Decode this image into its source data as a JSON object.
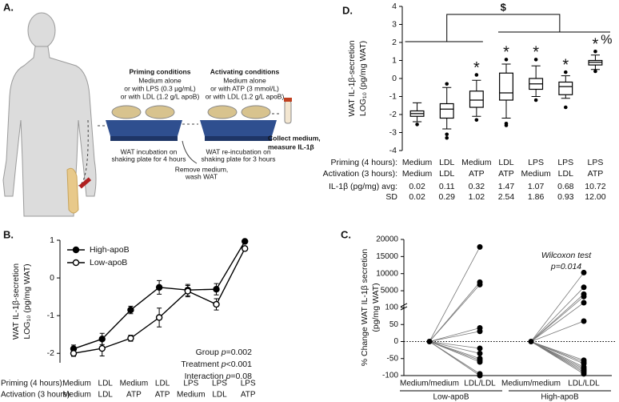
{
  "diagram": {
    "panel": "A.",
    "priming": {
      "title": "Priming conditions",
      "lines": [
        "Medium alone",
        "or with LPS (0.3 µg/mL)",
        "or with LDL (1.2 g/L apoB)"
      ]
    },
    "activating": {
      "title": "Activating conditions",
      "lines": [
        "Medium alone",
        "or with ATP (3 mmol/L)",
        "or with LDL (1.2 g/L apoB)"
      ]
    },
    "collect": [
      "Collect medium,",
      "measure IL-1β"
    ],
    "step1": [
      "WAT incubation on",
      "shaking plate for 4 hours"
    ],
    "step2": [
      "WAT re-incubation on",
      "shaking plate for 3 hours"
    ],
    "remove": [
      "Remove medium,",
      "wash WAT"
    ]
  },
  "chart_data": [
    {
      "type": "box",
      "panel": "D.",
      "y_label": [
        "WAT IL-1β-secretion",
        "LOG₁₀ (pg/mg WAT)"
      ],
      "row_labels": [
        "Priming (4 hours):",
        "Activation (3 hours):"
      ],
      "priming": [
        "Medium",
        "LDL",
        "Medium",
        "LDL",
        "LPS",
        "LPS",
        "LPS"
      ],
      "activation": [
        "Medium",
        "LDL",
        "ATP",
        "ATP",
        "Medium",
        "LDL",
        "ATP"
      ],
      "boxes": [
        {
          "whisker_low": -2.4,
          "q1": -2.1,
          "median": -1.95,
          "q3": -1.8,
          "whisker_high": -1.35,
          "outliers": [
            -2.55
          ]
        },
        {
          "whisker_low": -2.8,
          "q1": -2.2,
          "median": -1.7,
          "q3": -1.4,
          "whisker_high": -0.5,
          "outliers": [
            -3.1,
            -3.3,
            -0.3
          ]
        },
        {
          "whisker_low": -2.1,
          "q1": -1.6,
          "median": -1.2,
          "q3": -0.7,
          "whisker_high": -0.1,
          "outliers": [
            -2.3,
            0.2
          ]
        },
        {
          "whisker_low": -2.2,
          "q1": -1.2,
          "median": -0.8,
          "q3": 0.3,
          "whisker_high": 0.8,
          "outliers": [
            -2.5,
            -2.6,
            1.05
          ]
        },
        {
          "whisker_low": -1.0,
          "q1": -0.6,
          "median": -0.3,
          "q3": 0.0,
          "whisker_high": 0.7,
          "outliers": [
            -1.2,
            1.05
          ]
        },
        {
          "whisker_low": -1.1,
          "q1": -0.9,
          "median": -0.45,
          "q3": -0.2,
          "whisker_high": 0.15,
          "outliers": [
            -1.6,
            0.35
          ]
        },
        {
          "whisker_low": 0.5,
          "q1": 0.75,
          "median": 0.9,
          "q3": 1.0,
          "whisker_high": 1.3,
          "outliers": [
            0.4,
            1.5
          ]
        }
      ],
      "ylim": [
        -4,
        4
      ],
      "yticks": [
        -4,
        -3,
        -2,
        -1,
        0,
        1,
        2,
        3,
        4
      ],
      "stars": [
        null,
        null,
        "*",
        "*",
        "*",
        "*",
        "*"
      ],
      "extra_mark": "%",
      "bracket_label": "$",
      "table": {
        "labels": [
          "IL-1β (pg/mg) avg:",
          "SD"
        ],
        "rows": [
          [
            "0.02",
            "0.11",
            "0.32",
            "1.47",
            "1.07",
            "0.68",
            "10.72"
          ],
          [
            "0.02",
            "0.29",
            "1.02",
            "2.54",
            "1.86",
            "0.93",
            "12.00"
          ]
        ]
      }
    },
    {
      "type": "line",
      "panel": "B.",
      "y_label": [
        "WAT IL-1β-secretion",
        "LOG₁₀ (pg/mg WAT)"
      ],
      "row_labels": [
        "Priming (4 hours):",
        "Activation (3 hours):"
      ],
      "priming": [
        "Medium",
        "LDL",
        "Medium",
        "LDL",
        "LPS",
        "LPS",
        "LPS"
      ],
      "activation": [
        "Medium",
        "LDL",
        "ATP",
        "ATP",
        "Medium",
        "LDL",
        "ATP"
      ],
      "series": [
        {
          "name": "High-apoB",
          "color": "#000000",
          "marker": "filled",
          "values": [
            -1.88,
            -1.62,
            -0.85,
            -0.25,
            -0.32,
            -0.3,
            0.97
          ],
          "errors": [
            0.1,
            0.15,
            0.1,
            0.18,
            0.15,
            0.15,
            0.03
          ]
        },
        {
          "name": "Low-apoB",
          "color": "#000000",
          "marker": "open",
          "values": [
            -2.0,
            -1.87,
            -1.6,
            -1.05,
            -0.35,
            -0.7,
            0.78
          ],
          "errors": [
            0.08,
            0.2,
            0.08,
            0.25,
            0.15,
            0.15,
            0.05
          ]
        }
      ],
      "ylim": [
        -2.25,
        1
      ],
      "yticks": [
        -2,
        -1,
        0,
        1
      ],
      "stats": [
        [
          "Group ",
          "p",
          "=0.002"
        ],
        [
          "Treatment ",
          "p",
          "<0.001"
        ],
        [
          "Interaction ",
          "p",
          "=0.08"
        ]
      ]
    },
    {
      "type": "paired",
      "panel": "C.",
      "y_label": [
        "% Change WAT IL-1β secretion",
        "(pg/mg WAT)"
      ],
      "annotation": [
        "Wilcoxon test",
        "p=0.014"
      ],
      "ylim_lower": [
        -100,
        100
      ],
      "ylim_upper": [
        100,
        20000
      ],
      "yticks": [
        20000,
        15000,
        10000,
        5000,
        100,
        50,
        0,
        -50,
        -100
      ],
      "baseline": 0,
      "groups": [
        {
          "name": "Low-apoB",
          "labels": [
            "Medium/medium",
            "LDL/LDL"
          ],
          "values": [
            17800,
            7500,
            6800,
            40,
            30,
            -20,
            -35,
            -50,
            -55,
            -60,
            -95,
            -100
          ]
        },
        {
          "name": "High-apoB",
          "labels": [
            "Medium/medium",
            "LDL/LDL"
          ],
          "values": [
            10300,
            6000,
            4000,
            3300,
            1500,
            60,
            -55,
            -60,
            -65,
            -75,
            -80,
            -85,
            -90,
            -95
          ]
        }
      ]
    }
  ]
}
